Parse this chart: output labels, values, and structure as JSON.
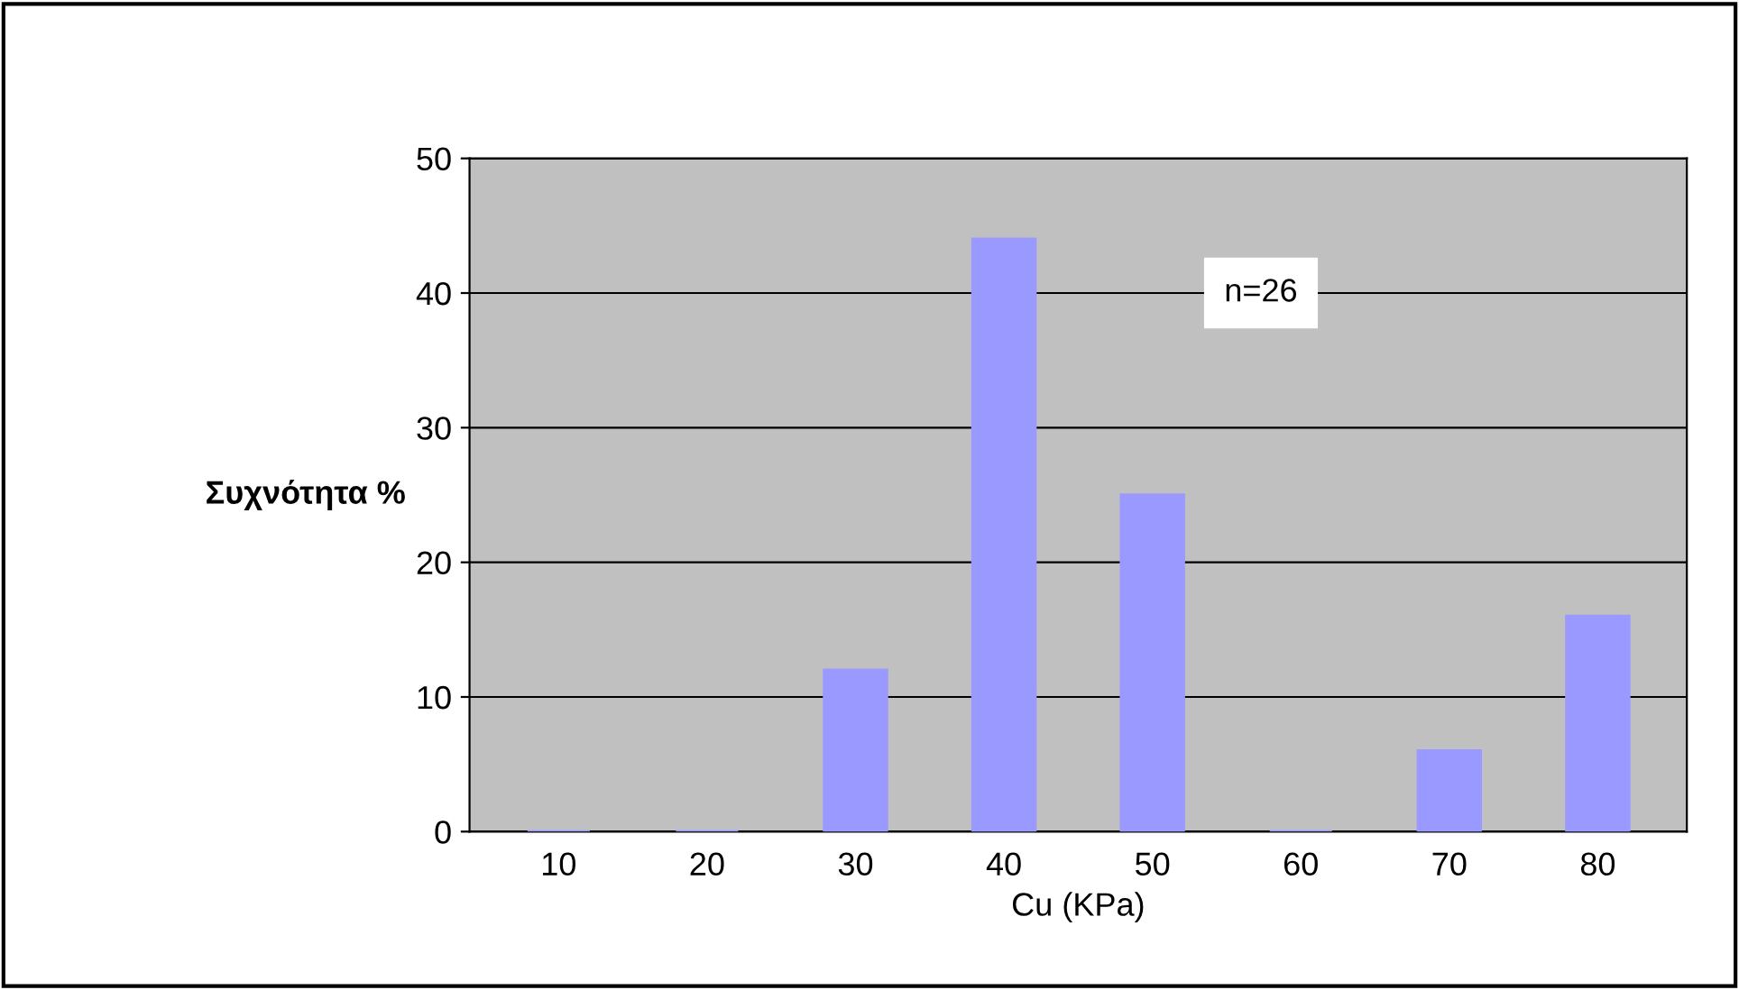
{
  "chart_data": {
    "type": "bar",
    "xlabel": "Cu (KPa)",
    "ylabel": "Συχνότητα %",
    "categories": [
      "10",
      "20",
      "30",
      "40",
      "50",
      "60",
      "70",
      "80"
    ],
    "values": [
      0,
      0,
      12,
      44,
      25,
      0,
      6,
      16
    ],
    "color": "#9999ff",
    "ylim": [
      0,
      50
    ],
    "yticks": [
      0,
      10,
      20,
      30,
      40,
      50
    ],
    "grid": "y",
    "annotations": [
      "n=26"
    ]
  }
}
